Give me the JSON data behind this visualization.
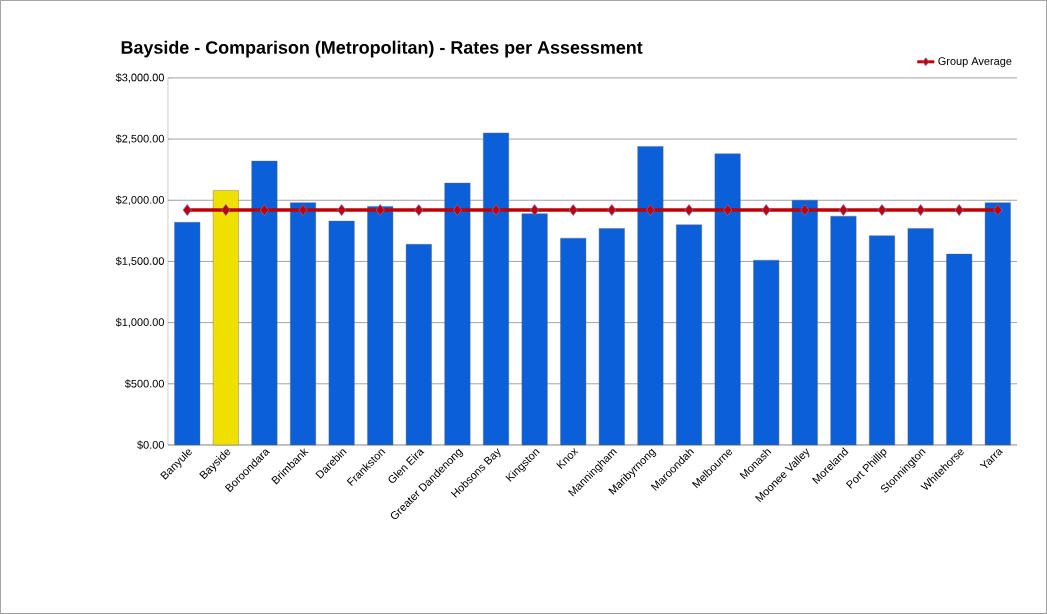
{
  "chart_data": {
    "type": "bar",
    "title": "Bayside - Comparison (Metropolitan) - Rates per Assessment",
    "categories": [
      "Banyule",
      "Bayside",
      "Boroondara",
      "Brimbank",
      "Darebin",
      "Frankston",
      "Glen Eira",
      "Greater Dandenong",
      "Hobsons Bay",
      "Kingston",
      "Knox",
      "Manningham",
      "Maribyrnong",
      "Maroondah",
      "Melbourne",
      "Monash",
      "Moonee Valley",
      "Moreland",
      "Port Phillip",
      "Stonnington",
      "Whitehorse",
      "Yarra"
    ],
    "series": [
      {
        "colors": [
          "#0b5fd8",
          "#f0e000",
          "#0b5fd8",
          "#0b5fd8",
          "#0b5fd8",
          "#0b5fd8",
          "#0b5fd8",
          "#0b5fd8",
          "#0b5fd8",
          "#0b5fd8",
          "#0b5fd8",
          "#0b5fd8",
          "#0b5fd8",
          "#0b5fd8",
          "#0b5fd8",
          "#0b5fd8",
          "#0b5fd8",
          "#0b5fd8",
          "#0b5fd8",
          "#0b5fd8",
          "#0b5fd8",
          "#0b5fd8"
        ],
        "values": [
          1820,
          2080,
          2320,
          1980,
          1830,
          1950,
          1640,
          2140,
          2550,
          1890,
          1690,
          1770,
          2440,
          1800,
          2380,
          1510,
          2000,
          1870,
          1710,
          1770,
          1560,
          1980
        ]
      },
      {
        "type": "line",
        "name": "Group Average",
        "color": "#c00000",
        "values": [
          1920,
          1920,
          1920,
          1920,
          1920,
          1920,
          1920,
          1920,
          1920,
          1920,
          1920,
          1920,
          1920,
          1920,
          1920,
          1920,
          1920,
          1920,
          1920,
          1920,
          1920,
          1920
        ]
      }
    ],
    "marker": "diamond",
    "ylim": [
      0,
      3000
    ],
    "yticks": [
      {
        "value": 0,
        "label": "$0.00"
      },
      {
        "value": 500,
        "label": "$500.00"
      },
      {
        "value": 1000,
        "label": "$1,000.00"
      },
      {
        "value": 1500,
        "label": "$1,500.00"
      },
      {
        "value": 2000,
        "label": "$2,000.00"
      },
      {
        "value": 2500,
        "label": "$2,500.00"
      },
      {
        "value": 3000,
        "label": "$3,000.00"
      }
    ],
    "grid": "y",
    "legend": "top right"
  }
}
